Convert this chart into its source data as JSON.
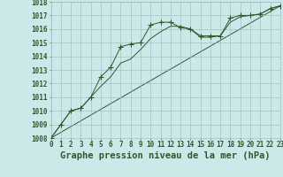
{
  "title": "Graphe pression niveau de la mer (hPa)",
  "line1_x": [
    0,
    1,
    2,
    3,
    4,
    5,
    6,
    7,
    8,
    9,
    10,
    11,
    12,
    13,
    14,
    15,
    16,
    17,
    18,
    19,
    20,
    21,
    22,
    23
  ],
  "line1_y": [
    1008.0,
    1009.0,
    1010.0,
    1010.2,
    1011.0,
    1012.5,
    1013.2,
    1014.7,
    1014.9,
    1015.0,
    1016.3,
    1016.5,
    1016.5,
    1016.1,
    1016.0,
    1015.5,
    1015.5,
    1015.5,
    1016.8,
    1017.0,
    1017.0,
    1017.1,
    1017.5,
    1017.7
  ],
  "line2_x": [
    0,
    1,
    2,
    3,
    4,
    5,
    6,
    7,
    8,
    9,
    10,
    11,
    12,
    13,
    14,
    15,
    16,
    17,
    18,
    19,
    20,
    21,
    22,
    23
  ],
  "line2_y": [
    1008.0,
    1009.0,
    1010.0,
    1010.2,
    1011.0,
    1011.8,
    1012.5,
    1013.5,
    1013.8,
    1014.5,
    1015.3,
    1015.8,
    1016.2,
    1016.2,
    1016.0,
    1015.4,
    1015.4,
    1015.5,
    1016.5,
    1016.9,
    1017.0,
    1017.1,
    1017.5,
    1017.7
  ],
  "line3_x": [
    0,
    23
  ],
  "line3_y": [
    1008.0,
    1017.7
  ],
  "ylim_min": 1008,
  "ylim_max": 1018,
  "xlim_min": 0,
  "xlim_max": 23,
  "bg_color": "#cce8e8",
  "grid_color": "#99bbbb",
  "line_color": "#2d5a2d",
  "marker": "+",
  "marker_size": 4,
  "title_fontsize": 7.5,
  "tick_fontsize": 5.5
}
